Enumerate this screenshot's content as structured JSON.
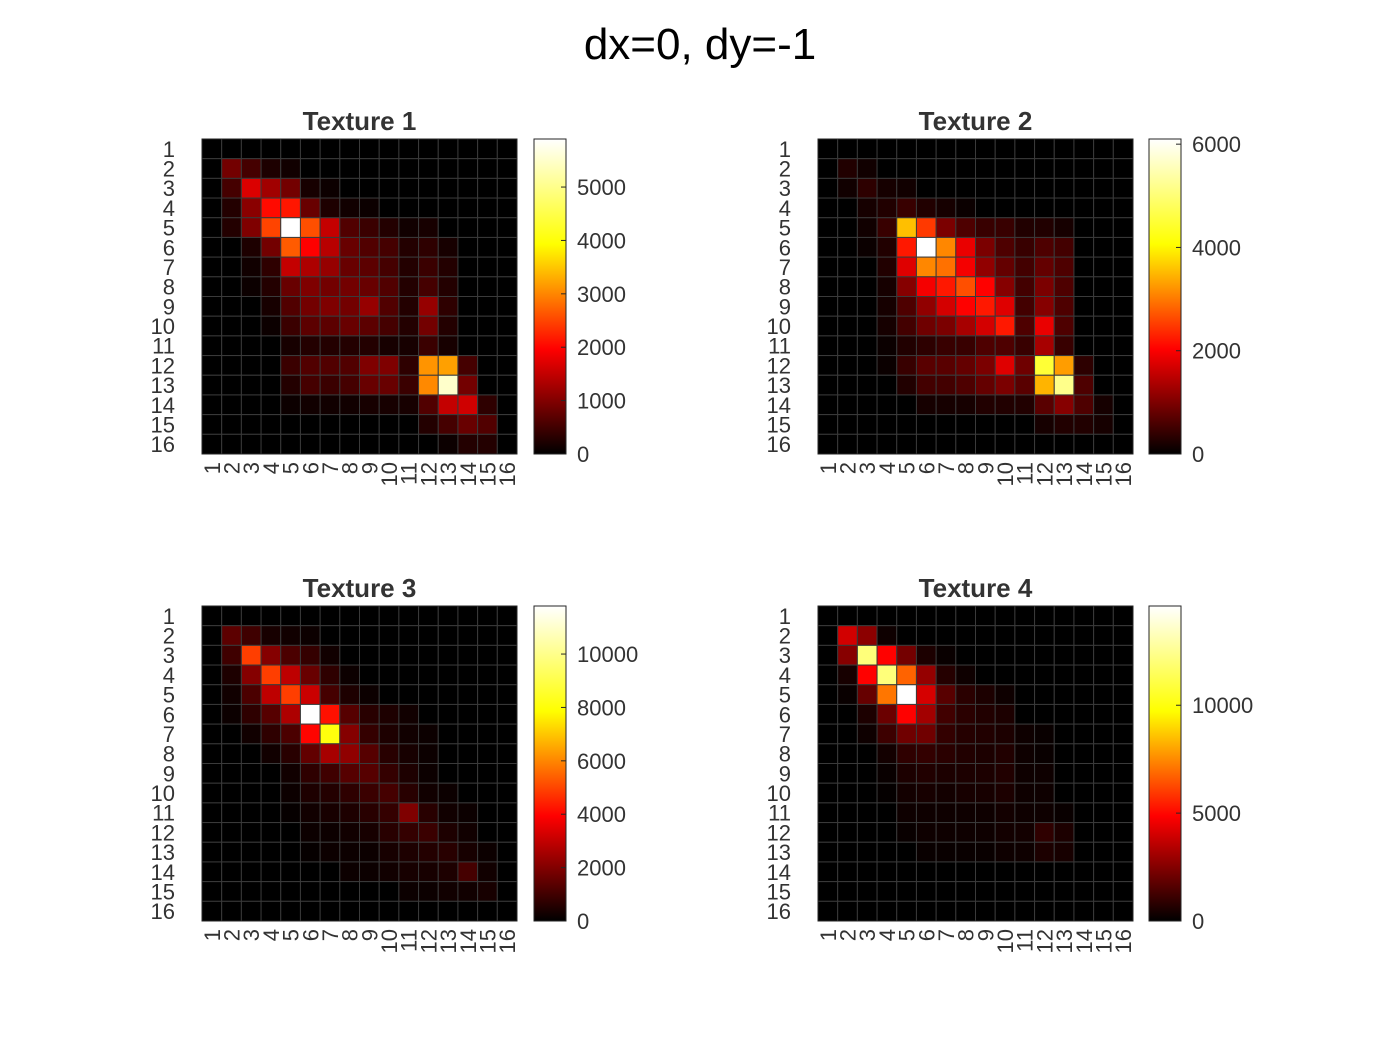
{
  "figure": {
    "title": "dx=0, dy=-1"
  },
  "colormap": {
    "name": "hot",
    "stops": [
      "#000000",
      "#ff0000",
      "#ffff00",
      "#ffffff"
    ],
    "grid_color": "#3a3a3a"
  },
  "chart_data": [
    {
      "type": "heatmap",
      "title": "Texture 1",
      "rows": [
        "1",
        "2",
        "3",
        "4",
        "5",
        "6",
        "7",
        "8",
        "9",
        "10",
        "11",
        "12",
        "13",
        "14",
        "15",
        "16"
      ],
      "cols": [
        "1",
        "2",
        "3",
        "4",
        "5",
        "6",
        "7",
        "8",
        "9",
        "10",
        "11",
        "12",
        "13",
        "14",
        "15",
        "16"
      ],
      "clim": [
        0,
        5900
      ],
      "colorbar_ticks": [
        0,
        1000,
        2000,
        3000,
        4000,
        5000
      ],
      "colorbar_tick_labels": [
        "0",
        "1000",
        "2000",
        "3000",
        "4000",
        "5000"
      ],
      "values": [
        [
          0,
          0,
          0,
          0,
          0,
          0,
          0,
          0,
          0,
          0,
          0,
          0,
          0,
          0,
          0,
          0
        ],
        [
          0,
          1000,
          600,
          250,
          150,
          0,
          0,
          0,
          0,
          0,
          0,
          0,
          0,
          0,
          0,
          0
        ],
        [
          0,
          600,
          1900,
          1400,
          1000,
          200,
          100,
          0,
          0,
          0,
          0,
          0,
          0,
          0,
          0,
          0
        ],
        [
          0,
          300,
          1200,
          2300,
          2400,
          900,
          250,
          150,
          100,
          0,
          0,
          0,
          0,
          0,
          0,
          0
        ],
        [
          0,
          300,
          1100,
          2800,
          5900,
          2900,
          1700,
          700,
          500,
          300,
          150,
          200,
          0,
          0,
          0,
          0
        ],
        [
          0,
          0,
          250,
          1000,
          3000,
          2200,
          1600,
          900,
          700,
          600,
          300,
          400,
          200,
          0,
          0,
          0
        ],
        [
          0,
          0,
          150,
          400,
          1700,
          1500,
          1300,
          900,
          800,
          600,
          300,
          500,
          300,
          0,
          0,
          0
        ],
        [
          0,
          0,
          100,
          300,
          900,
          1100,
          1000,
          1000,
          900,
          700,
          300,
          600,
          300,
          0,
          0,
          0
        ],
        [
          0,
          0,
          0,
          200,
          700,
          1000,
          1100,
          1000,
          1300,
          700,
          300,
          1300,
          400,
          0,
          0,
          0
        ],
        [
          0,
          0,
          0,
          100,
          500,
          800,
          800,
          900,
          800,
          600,
          300,
          1000,
          300,
          0,
          0,
          0
        ],
        [
          0,
          0,
          0,
          0,
          200,
          300,
          300,
          300,
          300,
          200,
          200,
          500,
          200,
          0,
          0,
          0
        ],
        [
          0,
          0,
          0,
          0,
          500,
          700,
          700,
          700,
          1100,
          1100,
          400,
          3500,
          3600,
          600,
          0,
          0
        ],
        [
          0,
          0,
          0,
          0,
          300,
          600,
          500,
          600,
          900,
          900,
          500,
          3400,
          5600,
          1000,
          0,
          0
        ],
        [
          0,
          0,
          0,
          0,
          100,
          150,
          150,
          150,
          200,
          200,
          200,
          700,
          1700,
          1800,
          400,
          0
        ],
        [
          0,
          0,
          0,
          0,
          0,
          0,
          0,
          0,
          0,
          0,
          0,
          300,
          600,
          900,
          700,
          0
        ],
        [
          0,
          0,
          0,
          0,
          0,
          0,
          0,
          0,
          0,
          0,
          0,
          0,
          100,
          300,
          300,
          0
        ]
      ]
    },
    {
      "type": "heatmap",
      "title": "Texture 2",
      "rows": [
        "1",
        "2",
        "3",
        "4",
        "5",
        "6",
        "7",
        "8",
        "9",
        "10",
        "11",
        "12",
        "13",
        "14",
        "15",
        "16"
      ],
      "cols": [
        "1",
        "2",
        "3",
        "4",
        "5",
        "6",
        "7",
        "8",
        "9",
        "10",
        "11",
        "12",
        "13",
        "14",
        "15",
        "16"
      ],
      "clim": [
        0,
        6100
      ],
      "colorbar_ticks": [
        0,
        2000,
        4000,
        6000
      ],
      "colorbar_tick_labels": [
        "0",
        "2000",
        "4000",
        "6000"
      ],
      "values": [
        [
          0,
          0,
          0,
          0,
          0,
          0,
          0,
          0,
          0,
          0,
          0,
          0,
          0,
          0,
          0,
          0
        ],
        [
          0,
          300,
          150,
          0,
          0,
          0,
          0,
          0,
          0,
          0,
          0,
          0,
          0,
          0,
          0,
          0
        ],
        [
          0,
          150,
          400,
          200,
          150,
          0,
          0,
          0,
          0,
          0,
          0,
          0,
          0,
          0,
          0,
          0
        ],
        [
          0,
          0,
          200,
          300,
          500,
          300,
          200,
          100,
          0,
          0,
          0,
          0,
          0,
          0,
          0,
          0
        ],
        [
          0,
          0,
          150,
          500,
          4000,
          2800,
          1100,
          700,
          500,
          500,
          300,
          300,
          200,
          0,
          0,
          0
        ],
        [
          0,
          0,
          100,
          300,
          2500,
          6100,
          3500,
          2100,
          1100,
          700,
          500,
          700,
          600,
          0,
          0,
          0
        ],
        [
          0,
          0,
          0,
          300,
          2000,
          3500,
          3300,
          2200,
          1300,
          900,
          600,
          900,
          700,
          0,
          0,
          0
        ],
        [
          0,
          0,
          0,
          200,
          1200,
          2200,
          2500,
          3000,
          2300,
          1200,
          600,
          1100,
          700,
          0,
          0,
          0
        ],
        [
          0,
          0,
          0,
          200,
          700,
          1300,
          1900,
          2300,
          2500,
          2000,
          600,
          1200,
          700,
          0,
          0,
          0
        ],
        [
          0,
          0,
          0,
          200,
          600,
          1000,
          1100,
          1500,
          1900,
          2500,
          700,
          2100,
          700,
          0,
          0,
          0
        ],
        [
          0,
          0,
          0,
          100,
          300,
          400,
          500,
          500,
          700,
          700,
          500,
          1500,
          500,
          0,
          0,
          0
        ],
        [
          0,
          0,
          0,
          100,
          500,
          800,
          800,
          900,
          1100,
          2000,
          1000,
          4900,
          3700,
          400,
          0,
          0
        ],
        [
          0,
          0,
          0,
          0,
          300,
          600,
          600,
          700,
          900,
          1100,
          800,
          3900,
          5400,
          700,
          0,
          0
        ],
        [
          0,
          0,
          0,
          0,
          0,
          200,
          200,
          200,
          300,
          300,
          300,
          800,
          1200,
          700,
          200,
          0
        ],
        [
          0,
          0,
          0,
          0,
          0,
          0,
          0,
          0,
          0,
          0,
          0,
          200,
          300,
          300,
          200,
          0
        ],
        [
          0,
          0,
          0,
          0,
          0,
          0,
          0,
          0,
          0,
          0,
          0,
          0,
          0,
          0,
          0,
          0
        ]
      ]
    },
    {
      "type": "heatmap",
      "title": "Texture 3",
      "rows": [
        "1",
        "2",
        "3",
        "4",
        "5",
        "6",
        "7",
        "8",
        "9",
        "10",
        "11",
        "12",
        "13",
        "14",
        "15",
        "16"
      ],
      "cols": [
        "1",
        "2",
        "3",
        "4",
        "5",
        "6",
        "7",
        "8",
        "9",
        "10",
        "11",
        "12",
        "13",
        "14",
        "15",
        "16"
      ],
      "clim": [
        0,
        11800
      ],
      "colorbar_ticks": [
        0,
        2000,
        4000,
        6000,
        8000,
        10000
      ],
      "colorbar_tick_labels": [
        "0",
        "2000",
        "4000",
        "6000",
        "8000",
        "10000"
      ],
      "values": [
        [
          0,
          0,
          0,
          0,
          0,
          0,
          0,
          0,
          0,
          0,
          0,
          0,
          0,
          0,
          0,
          0
        ],
        [
          0,
          1600,
          1100,
          400,
          300,
          200,
          0,
          0,
          0,
          0,
          0,
          0,
          0,
          0,
          0,
          0
        ],
        [
          0,
          1100,
          5500,
          2300,
          1300,
          900,
          300,
          0,
          0,
          0,
          0,
          0,
          0,
          0,
          0,
          0
        ],
        [
          0,
          500,
          2300,
          5500,
          3300,
          1800,
          800,
          200,
          0,
          0,
          0,
          0,
          0,
          0,
          0,
          0
        ],
        [
          0,
          300,
          1300,
          3300,
          5500,
          3500,
          1200,
          500,
          200,
          0,
          0,
          0,
          0,
          0,
          0,
          0
        ],
        [
          0,
          200,
          800,
          1500,
          3000,
          11800,
          4700,
          1500,
          700,
          500,
          300,
          0,
          0,
          0,
          0,
          0
        ],
        [
          0,
          0,
          300,
          800,
          1300,
          4500,
          9000,
          2300,
          900,
          500,
          300,
          200,
          0,
          0,
          0,
          0
        ],
        [
          0,
          0,
          0,
          300,
          700,
          1700,
          2900,
          2500,
          1500,
          700,
          400,
          200,
          0,
          0,
          0,
          0
        ],
        [
          0,
          0,
          0,
          0,
          300,
          800,
          1100,
          1500,
          1500,
          900,
          500,
          200,
          0,
          0,
          0,
          0
        ],
        [
          0,
          0,
          0,
          0,
          200,
          500,
          600,
          800,
          1000,
          1200,
          700,
          300,
          200,
          0,
          0,
          0
        ],
        [
          0,
          0,
          0,
          0,
          100,
          300,
          400,
          500,
          700,
          900,
          2200,
          700,
          300,
          200,
          0,
          0
        ],
        [
          0,
          0,
          0,
          0,
          0,
          200,
          200,
          300,
          400,
          700,
          900,
          1000,
          500,
          300,
          0,
          0
        ],
        [
          0,
          0,
          0,
          0,
          0,
          100,
          200,
          200,
          200,
          400,
          500,
          600,
          700,
          400,
          200,
          0
        ],
        [
          0,
          0,
          0,
          0,
          0,
          0,
          0,
          200,
          200,
          300,
          400,
          400,
          500,
          1200,
          300,
          0
        ],
        [
          0,
          0,
          0,
          0,
          0,
          0,
          0,
          0,
          0,
          0,
          200,
          200,
          300,
          300,
          400,
          0
        ],
        [
          0,
          0,
          0,
          0,
          0,
          0,
          0,
          0,
          0,
          0,
          0,
          0,
          0,
          0,
          0,
          0
        ]
      ]
    },
    {
      "type": "heatmap",
      "title": "Texture 4",
      "rows": [
        "1",
        "2",
        "3",
        "4",
        "5",
        "6",
        "7",
        "8",
        "9",
        "10",
        "11",
        "12",
        "13",
        "14",
        "15",
        "16"
      ],
      "cols": [
        "1",
        "2",
        "3",
        "4",
        "5",
        "6",
        "7",
        "8",
        "9",
        "10",
        "11",
        "12",
        "13",
        "14",
        "15",
        "16"
      ],
      "clim": [
        0,
        14600
      ],
      "colorbar_ticks": [
        0,
        5000,
        10000
      ],
      "colorbar_tick_labels": [
        "0",
        "5000",
        "10000"
      ],
      "values": [
        [
          0,
          0,
          0,
          0,
          0,
          0,
          0,
          0,
          0,
          0,
          0,
          0,
          0,
          0,
          0,
          0
        ],
        [
          0,
          4500,
          3000,
          300,
          0,
          0,
          0,
          0,
          0,
          0,
          0,
          0,
          0,
          0,
          0,
          0
        ],
        [
          0,
          2900,
          12700,
          5500,
          2500,
          600,
          200,
          0,
          0,
          0,
          0,
          0,
          0,
          0,
          0,
          0
        ],
        [
          0,
          500,
          5500,
          12700,
          7600,
          3200,
          800,
          300,
          0,
          0,
          0,
          0,
          0,
          0,
          0,
          0
        ],
        [
          0,
          200,
          2200,
          8000,
          14600,
          4600,
          1900,
          900,
          600,
          300,
          0,
          0,
          0,
          0,
          0,
          0
        ],
        [
          0,
          0,
          600,
          2300,
          5500,
          3500,
          1400,
          900,
          700,
          600,
          0,
          0,
          0,
          0,
          0,
          0
        ],
        [
          0,
          0,
          300,
          1300,
          2400,
          2400,
          1100,
          800,
          700,
          600,
          300,
          200,
          0,
          0,
          0,
          0
        ],
        [
          0,
          0,
          0,
          400,
          1000,
          1100,
          900,
          700,
          600,
          700,
          300,
          200,
          0,
          0,
          0,
          0
        ],
        [
          0,
          0,
          0,
          200,
          600,
          700,
          600,
          600,
          600,
          700,
          300,
          300,
          0,
          0,
          0,
          0
        ],
        [
          0,
          0,
          0,
          100,
          400,
          500,
          400,
          500,
          500,
          600,
          300,
          300,
          0,
          0,
          0,
          0
        ],
        [
          0,
          0,
          0,
          0,
          300,
          300,
          300,
          300,
          300,
          400,
          300,
          300,
          200,
          0,
          0,
          0
        ],
        [
          0,
          0,
          0,
          0,
          200,
          300,
          300,
          300,
          300,
          400,
          400,
          1000,
          600,
          0,
          0,
          0
        ],
        [
          0,
          0,
          0,
          0,
          0,
          200,
          200,
          200,
          200,
          300,
          300,
          600,
          500,
          0,
          0,
          0
        ],
        [
          0,
          0,
          0,
          0,
          0,
          0,
          0,
          0,
          0,
          0,
          0,
          0,
          0,
          0,
          0,
          0
        ],
        [
          0,
          0,
          0,
          0,
          0,
          0,
          0,
          0,
          0,
          0,
          0,
          0,
          0,
          0,
          0,
          0
        ],
        [
          0,
          0,
          0,
          0,
          0,
          0,
          0,
          0,
          0,
          0,
          0,
          0,
          0,
          0,
          0,
          0
        ]
      ]
    }
  ]
}
